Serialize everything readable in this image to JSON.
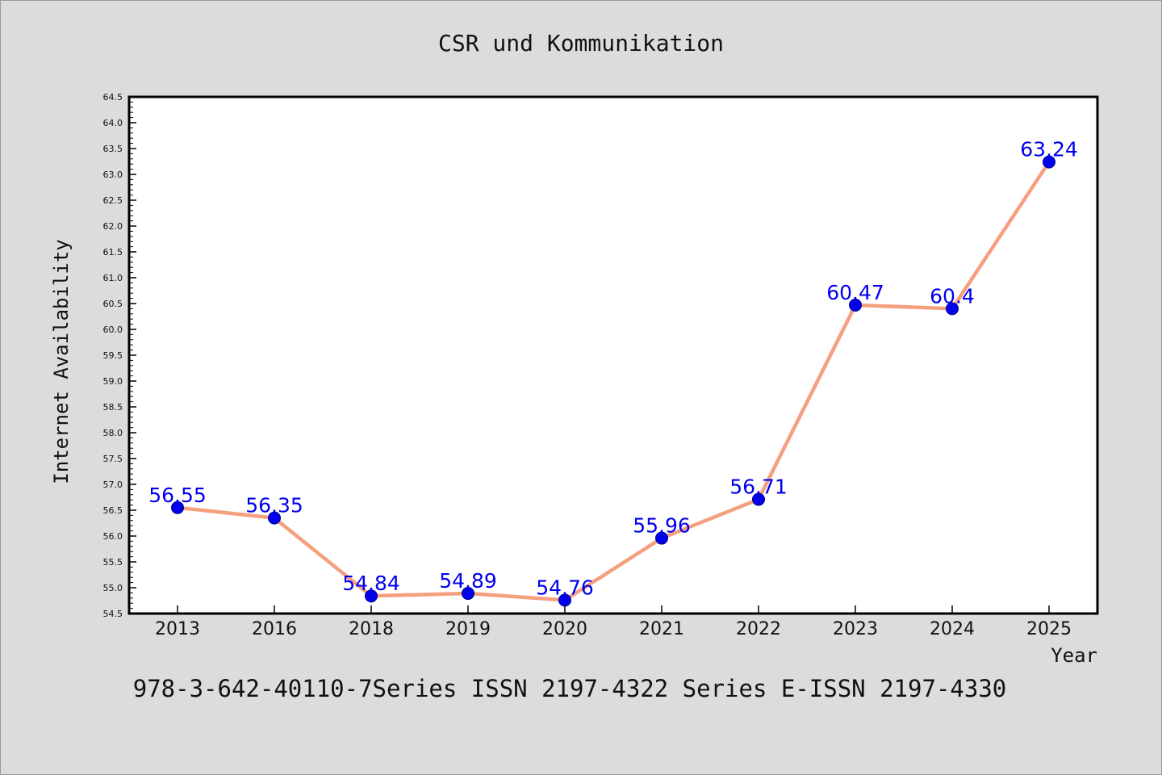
{
  "chart_data": {
    "type": "line",
    "title": "CSR und Kommunikation",
    "xlabel": "Year",
    "ylabel": "Internet Availability",
    "categories": [
      "2013",
      "2016",
      "2018",
      "2019",
      "2020",
      "2021",
      "2022",
      "2023",
      "2024",
      "2025"
    ],
    "series": [
      {
        "values": [
          56.55,
          56.35,
          54.84,
          54.89,
          54.76,
          55.96,
          56.71,
          60.47,
          60.4,
          63.24
        ],
        "labels": [
          "56.55",
          "56.35",
          "54.84",
          "54.89",
          "54.76",
          "55.96",
          "56.71",
          "60.47",
          "60.4",
          "63.24"
        ],
        "line_color": "#f4a07e",
        "marker_color": "#0000ee"
      }
    ],
    "ylim": [
      54.5,
      64.5
    ],
    "ytick_step": 0.5,
    "grid": false,
    "legend": "none"
  },
  "footer": "978-3-642-40110-7Series ISSN 2197-4322 Series E-ISSN 2197-4330",
  "colors": {
    "background": "#dcdcdc",
    "plot_background": "#ffffff",
    "line": "#f4a07e",
    "marker": "#0000ee",
    "data_label": "#0000ee"
  }
}
